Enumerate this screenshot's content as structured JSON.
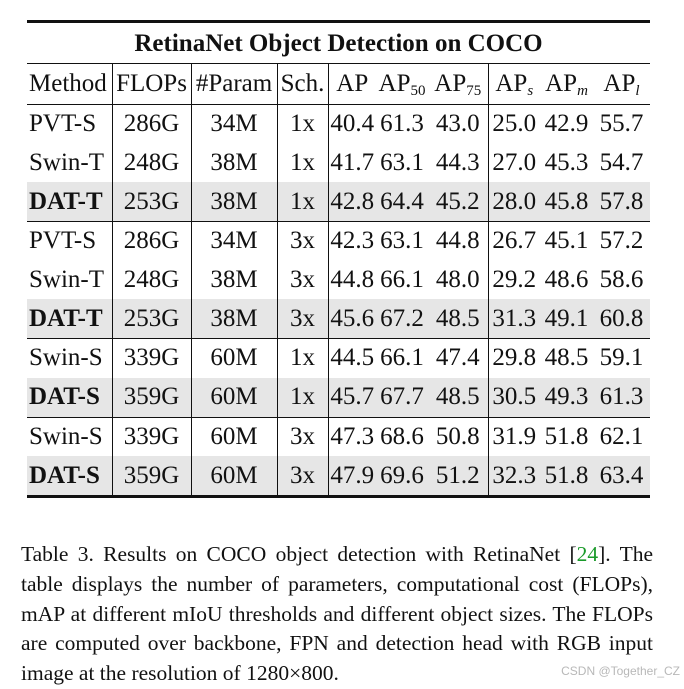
{
  "table": {
    "title": "RetinaNet Object Detection on COCO",
    "headers": {
      "method": "Method",
      "flops": "FLOPs",
      "params": "#Param",
      "sch": "Sch.",
      "ap": "AP",
      "ap50": "AP",
      "ap50_sub": "50",
      "ap75": "AP",
      "ap75_sub": "75",
      "aps": "AP",
      "aps_sub": "s",
      "apm": "AP",
      "apm_sub": "m",
      "apl": "AP",
      "apl_sub": "l"
    },
    "rows": [
      {
        "method": "PVT-S",
        "flops": "286G",
        "params": "34M",
        "sch": "1x",
        "ap": "40.4",
        "ap50": "61.3",
        "ap75": "43.0",
        "aps": "25.0",
        "apm": "42.9",
        "apl": "55.7"
      },
      {
        "method": "Swin-T",
        "flops": "248G",
        "params": "38M",
        "sch": "1x",
        "ap": "41.7",
        "ap50": "63.1",
        "ap75": "44.3",
        "aps": "27.0",
        "apm": "45.3",
        "apl": "54.7"
      },
      {
        "method": "DAT-T",
        "flops": "253G",
        "params": "38M",
        "sch": "1x",
        "ap": "42.8",
        "ap50": "64.4",
        "ap75": "45.2",
        "aps": "28.0",
        "apm": "45.8",
        "apl": "57.8"
      },
      {
        "method": "PVT-S",
        "flops": "286G",
        "params": "34M",
        "sch": "3x",
        "ap": "42.3",
        "ap50": "63.1",
        "ap75": "44.8",
        "aps": "26.7",
        "apm": "45.1",
        "apl": "57.2"
      },
      {
        "method": "Swin-T",
        "flops": "248G",
        "params": "38M",
        "sch": "3x",
        "ap": "44.8",
        "ap50": "66.1",
        "ap75": "48.0",
        "aps": "29.2",
        "apm": "48.6",
        "apl": "58.6"
      },
      {
        "method": "DAT-T",
        "flops": "253G",
        "params": "38M",
        "sch": "3x",
        "ap": "45.6",
        "ap50": "67.2",
        "ap75": "48.5",
        "aps": "31.3",
        "apm": "49.1",
        "apl": "60.8"
      },
      {
        "method": "Swin-S",
        "flops": "339G",
        "params": "60M",
        "sch": "1x",
        "ap": "44.5",
        "ap50": "66.1",
        "ap75": "47.4",
        "aps": "29.8",
        "apm": "48.5",
        "apl": "59.1"
      },
      {
        "method": "DAT-S",
        "flops": "359G",
        "params": "60M",
        "sch": "1x",
        "ap": "45.7",
        "ap50": "67.7",
        "ap75": "48.5",
        "aps": "30.5",
        "apm": "49.3",
        "apl": "61.3"
      },
      {
        "method": "Swin-S",
        "flops": "339G",
        "params": "60M",
        "sch": "3x",
        "ap": "47.3",
        "ap50": "68.6",
        "ap75": "50.8",
        "aps": "31.9",
        "apm": "51.8",
        "apl": "62.1"
      },
      {
        "method": "DAT-S",
        "flops": "359G",
        "params": "60M",
        "sch": "3x",
        "ap": "47.9",
        "ap50": "69.6",
        "ap75": "51.2",
        "aps": "32.3",
        "apm": "51.8",
        "apl": "63.4"
      }
    ]
  },
  "caption": {
    "part1": "Table 3. Results on COCO object detection with RetinaNet [",
    "ref": "24",
    "part2": "]. The table displays the number of parameters, computational cost (FLOPs), mAP at different mIoU thresholds and different object sizes. The FLOPs are computed over backbone, FPN and detection head with RGB input image at the resolution of 1280×800."
  },
  "watermark": "CSDN @Together_CZ"
}
